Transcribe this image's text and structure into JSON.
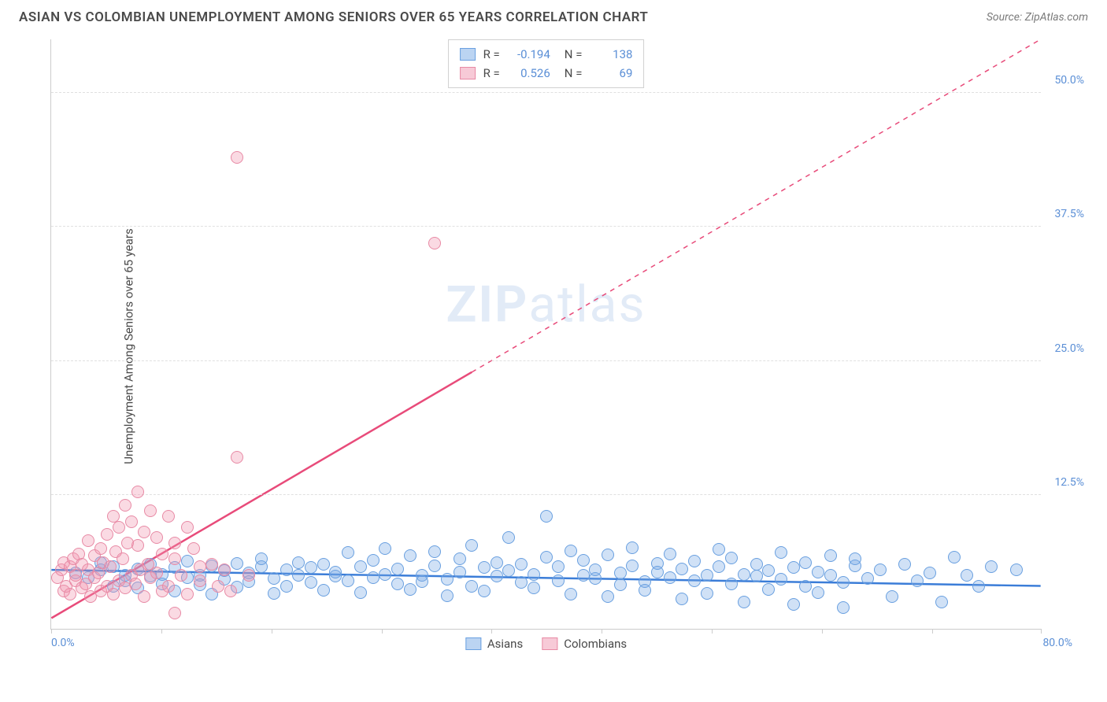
{
  "title": "ASIAN VS COLOMBIAN UNEMPLOYMENT AMONG SENIORS OVER 65 YEARS CORRELATION CHART",
  "source": "Source: ZipAtlas.com",
  "ylabel": "Unemployment Among Seniors over 65 years",
  "watermark_a": "ZIP",
  "watermark_b": "atlas",
  "chart": {
    "type": "scatter",
    "xlim": [
      0,
      80
    ],
    "ylim": [
      0,
      55
    ],
    "x_axis_labels": [
      {
        "pos": 0,
        "text": "0.0%"
      },
      {
        "pos": 80,
        "text": "80.0%"
      }
    ],
    "x_ticks": [
      0,
      8.9,
      17.8,
      26.7,
      35.6,
      44.5,
      53.4,
      62.3,
      71.2,
      80
    ],
    "y_gridlines": [
      12.5,
      25.0,
      37.5,
      50.0
    ],
    "y_tick_labels": [
      "12.5%",
      "25.0%",
      "37.5%",
      "50.0%"
    ],
    "background_color": "#ffffff",
    "grid_color": "#e0e0e0",
    "axis_color": "#cccccc",
    "label_color": "#5b8fd6",
    "point_radius": 8,
    "series": [
      {
        "name": "Asians",
        "fill": "rgba(120,170,230,0.35)",
        "stroke": "#6aa0e0",
        "line_color": "#3b7dd8",
        "line_width": 2.5,
        "line_dash": "none",
        "trend": {
          "y_at_x0": 5.5,
          "y_at_xmax": 4.0,
          "x_solid_end": 80
        },
        "R": "-0.194",
        "N": "138",
        "points": [
          [
            2,
            5.2
          ],
          [
            3,
            4.8
          ],
          [
            4,
            5.5
          ],
          [
            4,
            6.2
          ],
          [
            5,
            4.0
          ],
          [
            5,
            5.8
          ],
          [
            6,
            4.5
          ],
          [
            6,
            5.0
          ],
          [
            7,
            5.6
          ],
          [
            7,
            3.8
          ],
          [
            8,
            4.9
          ],
          [
            8,
            6.0
          ],
          [
            9,
            5.1
          ],
          [
            9,
            4.2
          ],
          [
            10,
            5.7
          ],
          [
            10,
            3.5
          ],
          [
            11,
            4.8
          ],
          [
            11,
            6.3
          ],
          [
            12,
            5.0
          ],
          [
            12,
            4.1
          ],
          [
            13,
            5.9
          ],
          [
            13,
            3.2
          ],
          [
            14,
            4.6
          ],
          [
            14,
            5.4
          ],
          [
            15,
            6.1
          ],
          [
            15,
            3.9
          ],
          [
            16,
            5.2
          ],
          [
            16,
            4.4
          ],
          [
            17,
            5.8
          ],
          [
            17,
            6.5
          ],
          [
            18,
            4.7
          ],
          [
            18,
            3.3
          ],
          [
            19,
            5.5
          ],
          [
            19,
            4.0
          ],
          [
            20,
            6.2
          ],
          [
            20,
            5.0
          ],
          [
            21,
            4.3
          ],
          [
            21,
            5.7
          ],
          [
            22,
            3.6
          ],
          [
            22,
            6.0
          ],
          [
            23,
            4.9
          ],
          [
            23,
            5.3
          ],
          [
            24,
            7.1
          ],
          [
            24,
            4.5
          ],
          [
            25,
            5.8
          ],
          [
            25,
            3.4
          ],
          [
            26,
            6.4
          ],
          [
            26,
            4.8
          ],
          [
            27,
            5.1
          ],
          [
            27,
            7.5
          ],
          [
            28,
            4.2
          ],
          [
            28,
            5.6
          ],
          [
            29,
            3.7
          ],
          [
            29,
            6.8
          ],
          [
            30,
            5.0
          ],
          [
            30,
            4.4
          ],
          [
            31,
            7.2
          ],
          [
            31,
            5.9
          ],
          [
            32,
            4.6
          ],
          [
            32,
            3.1
          ],
          [
            33,
            6.5
          ],
          [
            33,
            5.3
          ],
          [
            34,
            4.0
          ],
          [
            34,
            7.8
          ],
          [
            35,
            5.7
          ],
          [
            35,
            3.5
          ],
          [
            36,
            6.2
          ],
          [
            36,
            4.9
          ],
          [
            37,
            5.4
          ],
          [
            37,
            8.5
          ],
          [
            38,
            4.3
          ],
          [
            38,
            6.0
          ],
          [
            39,
            5.1
          ],
          [
            39,
            3.8
          ],
          [
            40,
            6.7
          ],
          [
            40,
            10.5
          ],
          [
            41,
            4.5
          ],
          [
            41,
            5.8
          ],
          [
            42,
            7.3
          ],
          [
            42,
            3.2
          ],
          [
            43,
            5.0
          ],
          [
            43,
            6.4
          ],
          [
            44,
            4.7
          ],
          [
            44,
            5.5
          ],
          [
            45,
            3.0
          ],
          [
            45,
            6.9
          ],
          [
            46,
            5.2
          ],
          [
            46,
            4.1
          ],
          [
            47,
            7.6
          ],
          [
            47,
            5.9
          ],
          [
            48,
            4.4
          ],
          [
            48,
            3.6
          ],
          [
            49,
            6.1
          ],
          [
            49,
            5.3
          ],
          [
            50,
            4.8
          ],
          [
            50,
            7.0
          ],
          [
            51,
            5.6
          ],
          [
            51,
            2.8
          ],
          [
            52,
            6.3
          ],
          [
            52,
            4.5
          ],
          [
            53,
            5.0
          ],
          [
            53,
            3.3
          ],
          [
            54,
            7.4
          ],
          [
            54,
            5.8
          ],
          [
            55,
            4.2
          ],
          [
            55,
            6.6
          ],
          [
            56,
            5.1
          ],
          [
            56,
            2.5
          ],
          [
            57,
            4.9
          ],
          [
            57,
            6.0
          ],
          [
            58,
            5.4
          ],
          [
            58,
            3.7
          ],
          [
            59,
            7.1
          ],
          [
            59,
            4.6
          ],
          [
            60,
            5.7
          ],
          [
            60,
            2.3
          ],
          [
            61,
            6.2
          ],
          [
            61,
            4.0
          ],
          [
            62,
            5.3
          ],
          [
            62,
            3.4
          ],
          [
            63,
            6.8
          ],
          [
            63,
            5.0
          ],
          [
            64,
            4.3
          ],
          [
            64,
            2.0
          ],
          [
            65,
            5.9
          ],
          [
            65,
            6.5
          ],
          [
            66,
            4.7
          ],
          [
            67,
            5.5
          ],
          [
            68,
            3.0
          ],
          [
            69,
            6.0
          ],
          [
            70,
            4.5
          ],
          [
            71,
            5.2
          ],
          [
            72,
            2.5
          ],
          [
            73,
            6.7
          ],
          [
            74,
            5.0
          ],
          [
            75,
            4.0
          ],
          [
            76,
            5.8
          ],
          [
            78,
            5.5
          ]
        ]
      },
      {
        "name": "Colombians",
        "fill": "rgba(240,150,175,0.35)",
        "stroke": "#e88aa5",
        "line_color": "#e84b7a",
        "line_width": 2.5,
        "line_dash": "dashed_after",
        "trend": {
          "y_at_x0": 1.0,
          "y_at_xmax": 55.0,
          "x_solid_end": 34
        },
        "R": "0.526",
        "N": "69",
        "points": [
          [
            0.5,
            4.8
          ],
          [
            0.8,
            5.5
          ],
          [
            1,
            3.5
          ],
          [
            1,
            6.2
          ],
          [
            1.2,
            4.0
          ],
          [
            1.5,
            5.8
          ],
          [
            1.5,
            3.2
          ],
          [
            1.8,
            6.5
          ],
          [
            2,
            4.5
          ],
          [
            2,
            5.0
          ],
          [
            2.2,
            7.0
          ],
          [
            2.5,
            3.8
          ],
          [
            2.5,
            6.0
          ],
          [
            2.8,
            4.2
          ],
          [
            3,
            5.5
          ],
          [
            3,
            8.2
          ],
          [
            3.2,
            3.0
          ],
          [
            3.5,
            6.8
          ],
          [
            3.5,
            4.8
          ],
          [
            3.8,
            5.2
          ],
          [
            4,
            7.5
          ],
          [
            4,
            3.5
          ],
          [
            4.2,
            6.2
          ],
          [
            4.5,
            8.8
          ],
          [
            4.5,
            4.0
          ],
          [
            4.8,
            5.8
          ],
          [
            5,
            10.5
          ],
          [
            5,
            3.2
          ],
          [
            5.2,
            7.2
          ],
          [
            5.5,
            9.5
          ],
          [
            5.5,
            4.5
          ],
          [
            5.8,
            6.5
          ],
          [
            6,
            11.5
          ],
          [
            6,
            3.8
          ],
          [
            6.2,
            8.0
          ],
          [
            6.5,
            5.0
          ],
          [
            6.5,
            10.0
          ],
          [
            6.8,
            4.2
          ],
          [
            7,
            7.8
          ],
          [
            7,
            12.8
          ],
          [
            7.2,
            5.5
          ],
          [
            7.5,
            9.0
          ],
          [
            7.5,
            3.0
          ],
          [
            7.8,
            6.0
          ],
          [
            8,
            11.0
          ],
          [
            8,
            4.8
          ],
          [
            8.5,
            8.5
          ],
          [
            8.5,
            5.2
          ],
          [
            9,
            7.0
          ],
          [
            9,
            3.5
          ],
          [
            9.5,
            10.5
          ],
          [
            9.5,
            4.0
          ],
          [
            10,
            6.5
          ],
          [
            10,
            8.0
          ],
          [
            10.5,
            5.0
          ],
          [
            11,
            9.5
          ],
          [
            11,
            3.2
          ],
          [
            11.5,
            7.5
          ],
          [
            12,
            5.8
          ],
          [
            12,
            4.5
          ],
          [
            13,
            6.0
          ],
          [
            13.5,
            4.0
          ],
          [
            14,
            5.5
          ],
          [
            14.5,
            3.5
          ],
          [
            15,
            44.0
          ],
          [
            15,
            16.0
          ],
          [
            16,
            5.0
          ],
          [
            31,
            36.0
          ],
          [
            10,
            1.5
          ]
        ]
      }
    ]
  },
  "stats_box": {
    "rows": [
      {
        "swatch_fill": "rgba(120,170,230,0.5)",
        "swatch_border": "#6aa0e0",
        "R": "-0.194",
        "N": "138"
      },
      {
        "swatch_fill": "rgba(240,150,175,0.5)",
        "swatch_border": "#e88aa5",
        "R": "0.526",
        "N": "69"
      }
    ],
    "labels": {
      "R": "R =",
      "N": "N ="
    }
  },
  "legend": [
    {
      "swatch_fill": "rgba(120,170,230,0.5)",
      "swatch_border": "#6aa0e0",
      "label": "Asians"
    },
    {
      "swatch_fill": "rgba(240,150,175,0.5)",
      "swatch_border": "#e88aa5",
      "label": "Colombians"
    }
  ]
}
